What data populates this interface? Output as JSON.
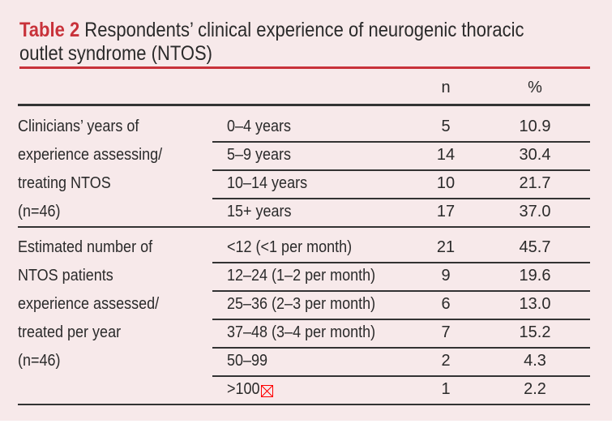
{
  "title": {
    "label": "Table 2",
    "line1": "Respondents’ clinical experience of neurogenic thoracic",
    "line2": "outlet syndrome (NTOS)"
  },
  "headers": {
    "n": "n",
    "pct": "%"
  },
  "groups": [
    {
      "label_lines": [
        "Clinicians’ years of",
        "experience assessing/",
        "treating NTOS",
        "(n=46)"
      ],
      "rows": [
        {
          "cat": "0–4 years",
          "n": "5",
          "pct": "10.9"
        },
        {
          "cat": "5–9 years",
          "n": "14",
          "pct": "30.4"
        },
        {
          "cat": "10–14 years",
          "n": "10",
          "pct": "21.7"
        },
        {
          "cat": "15+ years",
          "n": "17",
          "pct": "37.0"
        }
      ]
    },
    {
      "label_lines": [
        "Estimated number of",
        "NTOS patients",
        "experience assessed/",
        "treated per year",
        "(n=46)"
      ],
      "rows": [
        {
          "cat": "<12 (<1 per month)",
          "n": "21",
          "pct": "45.7"
        },
        {
          "cat": "12–24 (1–2 per month)",
          "n": "9",
          "pct": "19.6"
        },
        {
          "cat": "25–36 (2–3 per month)",
          "n": "6",
          "pct": "13.0"
        },
        {
          "cat": "37–48 (3–4 per month)",
          "n": "7",
          "pct": "15.2"
        },
        {
          "cat": "50–99",
          "n": "2",
          "pct": "4.3"
        },
        {
          "cat": ">100",
          "n": "1",
          "pct": "2.2"
        }
      ]
    }
  ],
  "colors": {
    "accent": "#c8323a",
    "background": "#f7e9ea"
  },
  "icons": {
    "broken_image": "broken-image-icon"
  }
}
